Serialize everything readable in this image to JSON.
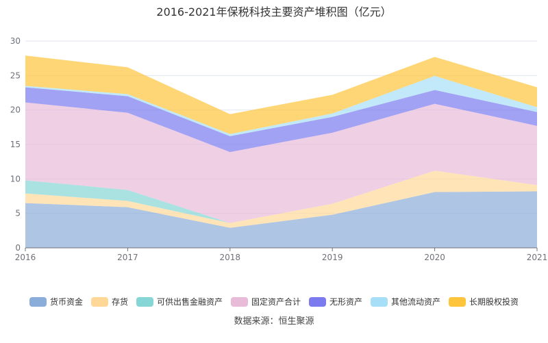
{
  "chart_data": {
    "type": "area",
    "stacked": true,
    "title": "2016-2021年保税科技主要资产堆积图（亿元）",
    "categories": [
      "2016",
      "2017",
      "2018",
      "2019",
      "2020",
      "2021"
    ],
    "ylim": [
      0,
      30
    ],
    "yticks": [
      "0",
      "5",
      "10",
      "15",
      "20",
      "25",
      "30"
    ],
    "grid": true,
    "legend_position": "bottom",
    "series": [
      {
        "name": "货币资金",
        "color": "#8badd9",
        "values": [
          6.5,
          5.9,
          2.9,
          4.8,
          8.1,
          8.2
        ]
      },
      {
        "name": "存货",
        "color": "#ffd898",
        "values": [
          1.4,
          0.9,
          0.7,
          1.6,
          3.1,
          0.9
        ]
      },
      {
        "name": "可供出售金融资产",
        "color": "#86d6d6",
        "values": [
          1.9,
          1.6,
          0,
          0,
          0,
          0
        ]
      },
      {
        "name": "固定资产合计",
        "color": "#e8bbd8",
        "values": [
          11.3,
          11.2,
          10.3,
          10.3,
          9.7,
          8.6
        ]
      },
      {
        "name": "无形资产",
        "color": "#7b7bef",
        "values": [
          2.2,
          2.4,
          2.3,
          2.3,
          2.0,
          2.0
        ]
      },
      {
        "name": "其他流动资产",
        "color": "#a7dff8",
        "values": [
          0.2,
          0.3,
          0.3,
          0.5,
          2.05,
          0.7
        ]
      },
      {
        "name": "长期股权投资",
        "color": "#fdc43c",
        "values": [
          4.4,
          3.9,
          2.9,
          2.7,
          2.75,
          2.9
        ]
      }
    ]
  },
  "source": "数据来源：恒生聚源"
}
